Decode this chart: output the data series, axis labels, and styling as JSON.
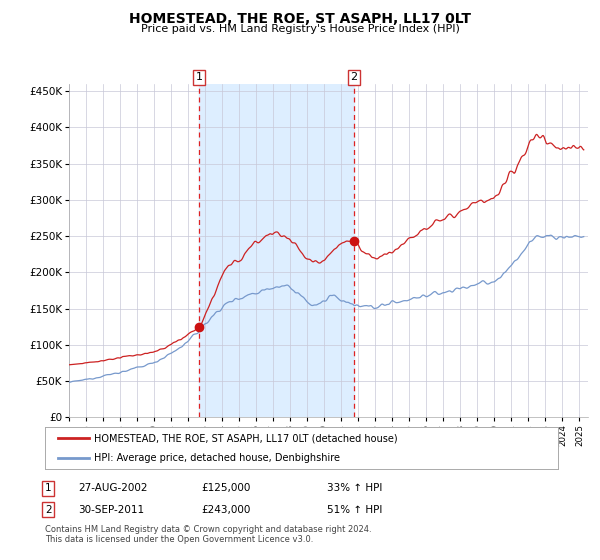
{
  "title": "HOMESTEAD, THE ROE, ST ASAPH, LL17 0LT",
  "subtitle": "Price paid vs. HM Land Registry's House Price Index (HPI)",
  "ylim": [
    0,
    460000
  ],
  "yticks": [
    0,
    50000,
    100000,
    150000,
    200000,
    250000,
    300000,
    350000,
    400000,
    450000
  ],
  "ytick_labels": [
    "£0",
    "£50K",
    "£100K",
    "£150K",
    "£200K",
    "£250K",
    "£300K",
    "£350K",
    "£400K",
    "£450K"
  ],
  "xlim_start": 1995.0,
  "xlim_end": 2025.5,
  "sale1_date": 2002.65,
  "sale1_price": 125000,
  "sale2_date": 2011.75,
  "sale2_price": 243000,
  "sale1_date_str": "27-AUG-2002",
  "sale1_price_str": "£125,000",
  "sale1_hpi_str": "33% ↑ HPI",
  "sale2_date_str": "30-SEP-2011",
  "sale2_price_str": "£243,000",
  "sale2_hpi_str": "51% ↑ HPI",
  "hpi_color": "#7799cc",
  "price_color": "#cc2222",
  "dot_color": "#cc1111",
  "shade_color": "#ddeeff",
  "grid_color": "#c8c8d8",
  "bg_color": "#ffffff",
  "legend_label_price": "HOMESTEAD, THE ROE, ST ASAPH, LL17 0LT (detached house)",
  "legend_label_hpi": "HPI: Average price, detached house, Denbighshire",
  "footer1": "Contains HM Land Registry data © Crown copyright and database right 2024.",
  "footer2": "This data is licensed under the Open Government Licence v3.0."
}
